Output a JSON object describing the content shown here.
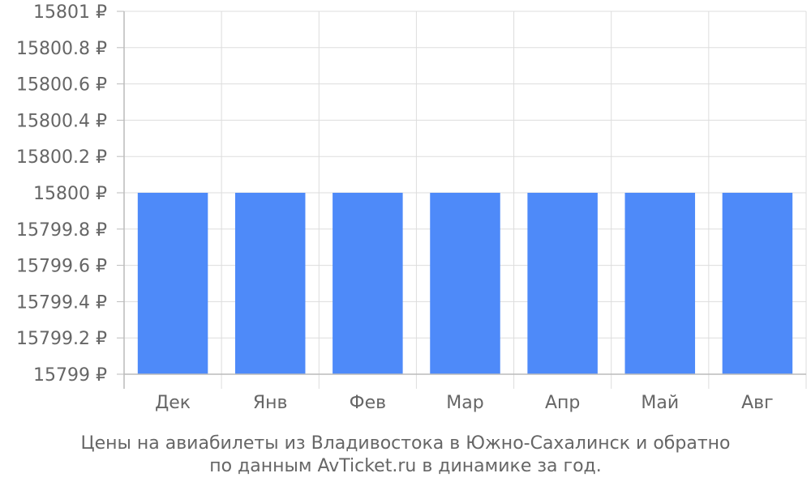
{
  "caption": {
    "line1": "Цены на авиабилеты из Владивостока в Южно-Сахалинск и обратно",
    "line2": "по данным AvTicket.ru в динамике за год."
  },
  "colors": {
    "bar": "#4e8af9",
    "grid": "#dddddd",
    "axis": "#bbbbbb",
    "text": "#666666"
  },
  "chart_data": {
    "type": "bar",
    "categories": [
      "Дек",
      "Янв",
      "Фев",
      "Мар",
      "Апр",
      "Май",
      "Авг"
    ],
    "values": [
      15800,
      15800,
      15800,
      15800,
      15800,
      15800,
      15800
    ],
    "ylim": [
      15799,
      15801
    ],
    "yticks": [
      15799,
      15799.2,
      15799.4,
      15799.6,
      15799.8,
      15800,
      15800.2,
      15800.4,
      15800.6,
      15800.8,
      15801
    ],
    "ytick_labels": [
      "15799 ₽",
      "15799.2 ₽",
      "15799.4 ₽",
      "15799.6 ₽",
      "15799.8 ₽",
      "15800 ₽",
      "15800.2 ₽",
      "15800.4 ₽",
      "15800.6 ₽",
      "15800.8 ₽",
      "15801 ₽"
    ],
    "grid": true,
    "legend": "none",
    "title": "",
    "xlabel": "",
    "ylabel": ""
  }
}
